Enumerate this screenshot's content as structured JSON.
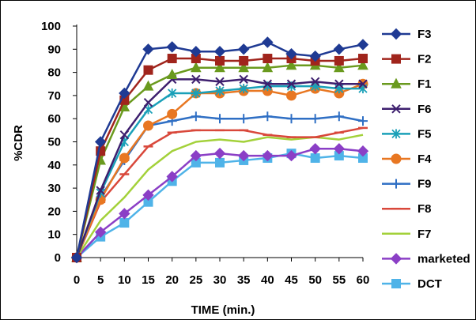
{
  "chart_data": {
    "type": "line",
    "title": "",
    "xlabel": "TIME (min.)",
    "ylabel": "%CDR",
    "x": [
      0,
      5,
      10,
      15,
      20,
      25,
      30,
      35,
      40,
      45,
      50,
      55,
      60
    ],
    "xlim": [
      0,
      60
    ],
    "ylim": [
      0,
      100
    ],
    "y_ticks": [
      0,
      10,
      20,
      30,
      40,
      50,
      60,
      70,
      80,
      90,
      100
    ],
    "grid": false,
    "legend_position": "right",
    "series": [
      {
        "name": "F3",
        "color": "#1f3a93",
        "marker": "diamond",
        "values": [
          0,
          50,
          71,
          90,
          91,
          89,
          89,
          90,
          93,
          88,
          87,
          90,
          92
        ]
      },
      {
        "name": "F2",
        "color": "#a0241c",
        "marker": "square",
        "values": [
          0,
          46,
          68,
          81,
          86,
          86,
          85,
          85,
          86,
          86,
          85,
          85,
          86
        ]
      },
      {
        "name": "F1",
        "color": "#6a9a1e",
        "marker": "triangle",
        "values": [
          0,
          42,
          65,
          74,
          79,
          82,
          82,
          82,
          82,
          83,
          83,
          82,
          83
        ]
      },
      {
        "name": "F6",
        "color": "#3d1f6e",
        "marker": "x",
        "values": [
          0,
          29,
          53,
          67,
          77,
          77,
          76,
          77,
          75,
          75,
          76,
          75,
          75
        ]
      },
      {
        "name": "F5",
        "color": "#1aa0b8",
        "marker": "asterisk",
        "values": [
          0,
          28,
          50,
          64,
          71,
          71,
          72,
          73,
          74,
          74,
          74,
          73,
          73
        ]
      },
      {
        "name": "F4",
        "color": "#e87722",
        "marker": "circle",
        "values": [
          0,
          25,
          43,
          57,
          62,
          71,
          71,
          72,
          72,
          70,
          73,
          71,
          75
        ]
      },
      {
        "name": "F9",
        "color": "#2f6fc4",
        "marker": "plus",
        "values": [
          0,
          26,
          42,
          57,
          59,
          61,
          60,
          60,
          61,
          60,
          60,
          61,
          59
        ]
      },
      {
        "name": "F8",
        "color": "#d9483b",
        "marker": "dash",
        "values": [
          0,
          24,
          36,
          48,
          54,
          55,
          55,
          55,
          53,
          52,
          52,
          54,
          56
        ]
      },
      {
        "name": "F7",
        "color": "#a3d13a",
        "marker": "none",
        "values": [
          0,
          16,
          26,
          38,
          46,
          50,
          51,
          50,
          52,
          51,
          52,
          51,
          53
        ]
      },
      {
        "name": "marketed",
        "color": "#8b3fc6",
        "marker": "diamond",
        "values": [
          0,
          11,
          19,
          27,
          35,
          44,
          45,
          44,
          44,
          44,
          47,
          47,
          46
        ]
      },
      {
        "name": "DCT",
        "color": "#4fb3e8",
        "marker": "square",
        "values": [
          0,
          9,
          15,
          24,
          33,
          41,
          41,
          42,
          43,
          45,
          43,
          44,
          43
        ]
      }
    ]
  }
}
